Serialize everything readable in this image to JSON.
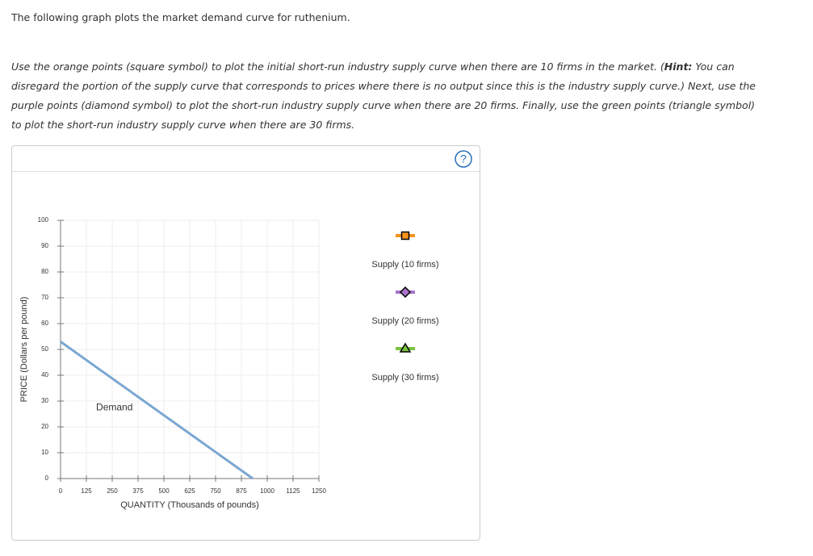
{
  "intro": "The following graph plots the market demand curve for ruthenium.",
  "instructions": [
    "Use the orange points (square symbol) to plot the initial short-run industry supply curve when there are 10 firms in the market. (",
    "Hint:",
    " You can disregard the portion of the supply curve that corresponds to prices where there is no output since this is the industry supply curve.) Next, use the purple points (diamond symbol) to plot the short-run industry supply curve when there are 20 firms. Finally, use the green points (triangle symbol) to plot the short-run industry supply curve when there are 30 firms."
  ],
  "help_label": "?",
  "chart_data": {
    "type": "line",
    "x_label": "QUANTITY (Thousands of pounds)",
    "y_label": "PRICE (Dollars per pound)",
    "xlim": [
      0,
      1250
    ],
    "xticks": [
      0,
      125,
      250,
      375,
      500,
      625,
      750,
      875,
      1000,
      1125,
      1250
    ],
    "ylim": [
      0,
      100
    ],
    "yticks": [
      0,
      10,
      20,
      30,
      40,
      50,
      60,
      70,
      80,
      90,
      100
    ],
    "grid": true,
    "series": [
      {
        "name": "Demand",
        "color": "#7ba7d1",
        "x": [
          0,
          930
        ],
        "values": [
          53,
          0
        ]
      }
    ],
    "palette": [
      {
        "name": "Supply (10 firms)",
        "color": "#f7941d",
        "symbol": "square"
      },
      {
        "name": "Supply (20 firms)",
        "color": "#a974c9",
        "symbol": "diamond"
      },
      {
        "name": "Supply (30 firms)",
        "color": "#7dc242",
        "symbol": "triangle"
      }
    ]
  }
}
